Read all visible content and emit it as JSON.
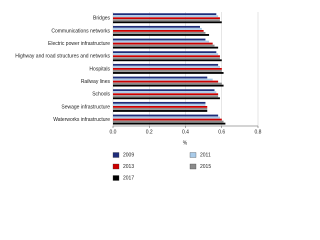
{
  "chart_data": {
    "type": "hbar",
    "x_label": "%",
    "categories": [
      "Bridges",
      "Communications networks",
      "Electric power infrastructure",
      "Highway and road structures and networks",
      "Hospitals",
      "Railway lines",
      "Schools",
      "Sewage infrastructure",
      "Waterworks infrastructure"
    ],
    "series": [
      {
        "name": "2009",
        "color": "#1f2d7a",
        "values": [
          0.57,
          0.48,
          0.51,
          0.57,
          0.58,
          0.52,
          0.56,
          0.51,
          0.58
        ]
      },
      {
        "name": "2011",
        "color": "#a9cbe9",
        "values": [
          0.58,
          0.49,
          0.53,
          0.58,
          0.59,
          0.55,
          0.57,
          0.51,
          0.59
        ]
      },
      {
        "name": "2013",
        "color": "#cc0000",
        "values": [
          0.59,
          0.5,
          0.55,
          0.59,
          0.6,
          0.58,
          0.58,
          0.52,
          0.6
        ]
      },
      {
        "name": "2015",
        "color": "#8c8c8c",
        "values": [
          0.59,
          0.51,
          0.56,
          0.59,
          0.6,
          0.6,
          0.58,
          0.52,
          0.61
        ]
      },
      {
        "name": "2017",
        "color": "#000000",
        "values": [
          0.6,
          0.53,
          0.58,
          0.6,
          0.61,
          0.61,
          0.59,
          0.52,
          0.62
        ]
      }
    ],
    "xlim": [
      0,
      0.8
    ],
    "xticks": [
      {
        "value": 0,
        "label": "0.0"
      },
      0.2,
      0.4,
      0.6,
      0.8
    ],
    "grid": true
  }
}
